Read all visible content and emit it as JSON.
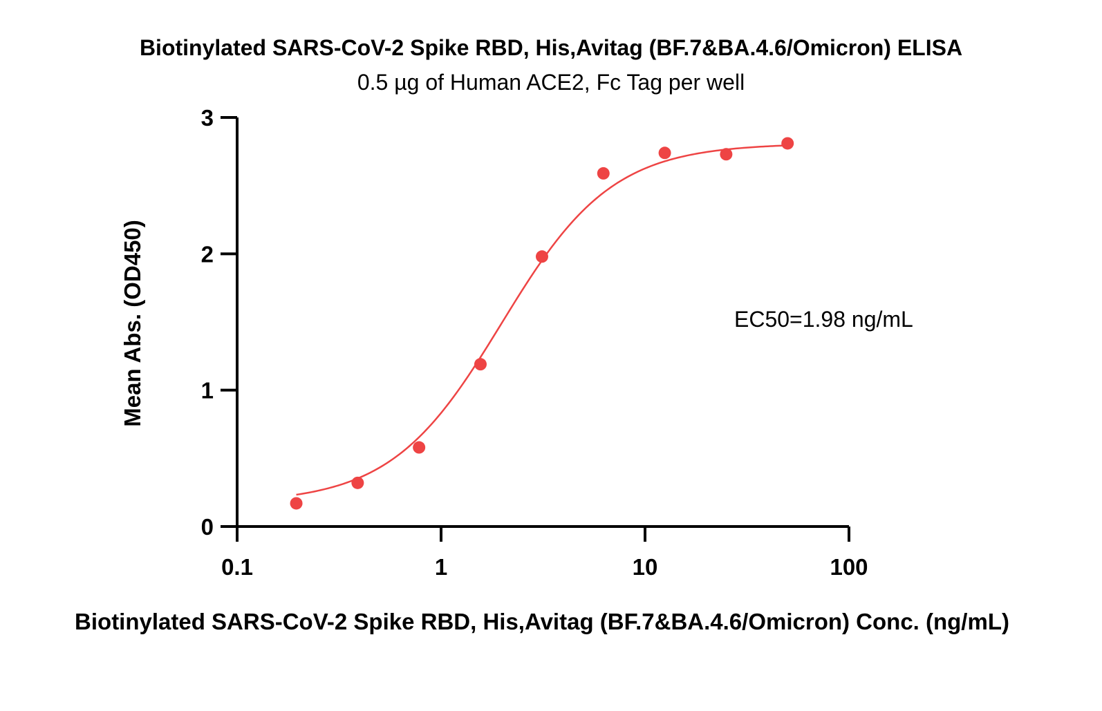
{
  "chart_data": {
    "type": "scatter",
    "title": "Biotinylated SARS-CoV-2 Spike RBD, His,Avitag (BF.7&BA.4.6/Omicron) ELISA",
    "subtitle": "0.5 µg of Human ACE2, Fc Tag per well",
    "xlabel": "Biotinylated SARS-CoV-2 Spike RBD, His,Avitag (BF.7&BA.4.6/Omicron) Conc. (ng/mL)",
    "ylabel": "Mean Abs. (OD450)",
    "x_scale": "log",
    "xlim": [
      0.1,
      100
    ],
    "ylim": [
      0,
      3
    ],
    "x_ticks": [
      0.1,
      1,
      10,
      100
    ],
    "x_tick_labels": [
      "0.1",
      "1",
      "10",
      "100"
    ],
    "y_ticks": [
      0,
      1,
      2,
      3
    ],
    "y_tick_labels": [
      "0",
      "1",
      "2",
      "3"
    ],
    "grid": false,
    "legend": "none",
    "annotation": "EC50=1.98 ng/mL",
    "series": [
      {
        "color": "#ee4444",
        "marker": "circle",
        "x": [
          0.195,
          0.39,
          0.78,
          1.56,
          3.125,
          6.25,
          12.5,
          25,
          50
        ],
        "y": [
          0.17,
          0.32,
          0.58,
          1.19,
          1.98,
          2.59,
          2.74,
          2.73,
          2.81
        ],
        "fit": {
          "model": "4PL",
          "bottom": 0.17,
          "top": 2.81,
          "ec50": 1.98,
          "hill": 1.6
        }
      }
    ]
  }
}
